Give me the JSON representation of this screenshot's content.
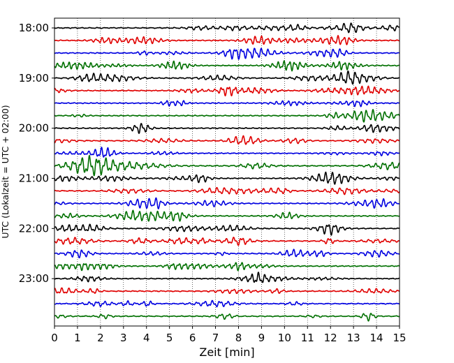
{
  "chart_data": {
    "type": "line",
    "description_kind": "helicorder",
    "xlabel": "Zeit  [min]",
    "ylabel": "UTC (Lokalzeit = UTC + 02:00)",
    "xlim": [
      0,
      15
    ],
    "x_ticks": [
      0,
      1,
      2,
      3,
      4,
      5,
      6,
      7,
      8,
      9,
      10,
      11,
      12,
      13,
      14,
      15
    ],
    "x_tick_labels": [
      "0",
      "1",
      "2",
      "3",
      "4",
      "5",
      "6",
      "7",
      "8",
      "9",
      "10",
      "11",
      "12",
      "13",
      "14",
      "15"
    ],
    "y_tick_labels": [
      "18:00",
      "19:00",
      "20:00",
      "21:00",
      "22:00",
      "23:00"
    ],
    "rows_per_hour": 4,
    "row_count": 24,
    "row_minutes": 15,
    "vertical_grid": true,
    "grid_style": "dotted",
    "trace_colors": [
      "#000000",
      "#e00000",
      "#0000e0",
      "#007000"
    ],
    "series": [
      {
        "start": "18:00",
        "color": "#000000"
      },
      {
        "start": "18:15",
        "color": "#e00000"
      },
      {
        "start": "18:30",
        "color": "#0000e0"
      },
      {
        "start": "18:45",
        "color": "#007000"
      },
      {
        "start": "19:00",
        "color": "#000000"
      },
      {
        "start": "19:15",
        "color": "#e00000"
      },
      {
        "start": "19:30",
        "color": "#0000e0"
      },
      {
        "start": "19:45",
        "color": "#007000"
      },
      {
        "start": "20:00",
        "color": "#000000"
      },
      {
        "start": "20:15",
        "color": "#e00000"
      },
      {
        "start": "20:30",
        "color": "#0000e0"
      },
      {
        "start": "20:45",
        "color": "#007000"
      },
      {
        "start": "21:00",
        "color": "#000000"
      },
      {
        "start": "21:15",
        "color": "#e00000"
      },
      {
        "start": "21:30",
        "color": "#0000e0"
      },
      {
        "start": "21:45",
        "color": "#007000"
      },
      {
        "start": "22:00",
        "color": "#000000"
      },
      {
        "start": "22:15",
        "color": "#e00000"
      },
      {
        "start": "22:30",
        "color": "#0000e0"
      },
      {
        "start": "22:45",
        "color": "#007000"
      },
      {
        "start": "23:00",
        "color": "#000000"
      },
      {
        "start": "23:15",
        "color": "#e00000"
      },
      {
        "start": "23:30",
        "color": "#0000e0"
      },
      {
        "start": "23:45",
        "color": "#007000"
      }
    ]
  }
}
